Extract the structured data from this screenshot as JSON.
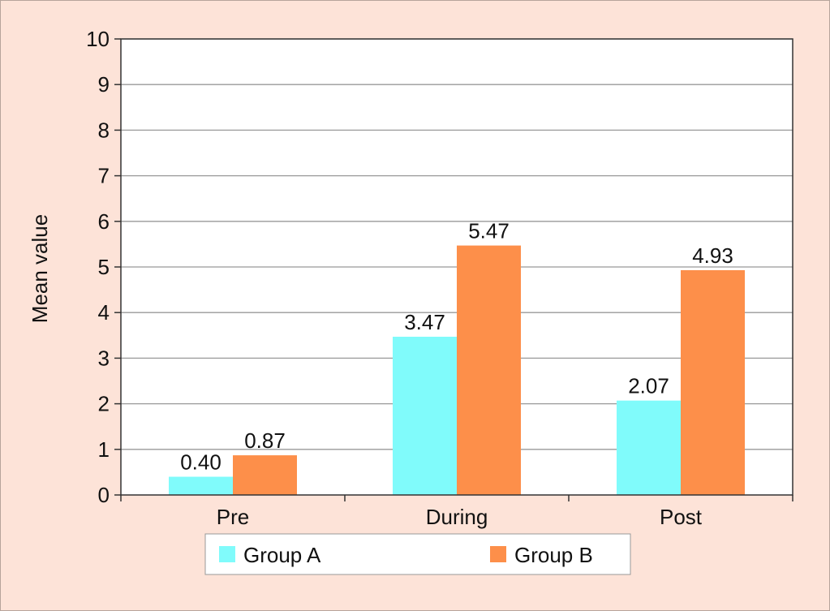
{
  "colors": {
    "background": "#fde3d8",
    "plot_background": "#ffffff",
    "gridline": "#999999",
    "axis": "#333333"
  },
  "chart_data": {
    "type": "bar",
    "categories": [
      "Pre",
      "During",
      "Post"
    ],
    "series": [
      {
        "name": "Group A",
        "values": [
          0.4,
          3.47,
          2.07
        ],
        "labels": [
          "0.40",
          "3.47",
          "2.07"
        ],
        "color": "#80fbfb"
      },
      {
        "name": "Group B",
        "values": [
          0.87,
          5.47,
          4.93
        ],
        "labels": [
          "0.87",
          "5.47",
          "4.93"
        ],
        "color": "#fd8f4a"
      }
    ],
    "title": "",
    "xlabel": "",
    "ylabel": "Mean value",
    "ylim": [
      0,
      10
    ],
    "yticks": [
      "0",
      "1",
      "2",
      "3",
      "4",
      "5",
      "6",
      "7",
      "8",
      "9",
      "10"
    ],
    "grid": true,
    "legend_position": "bottom"
  }
}
